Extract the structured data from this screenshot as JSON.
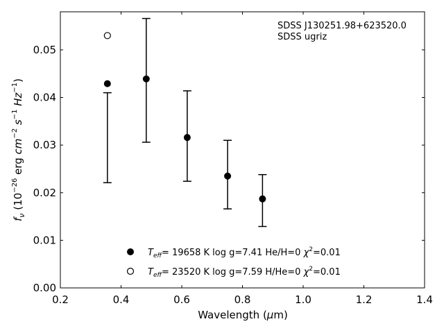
{
  "chart_data": {
    "type": "scatter",
    "title": "",
    "xlabel": "Wavelength (μm)",
    "ylabel": "fν (10⁻²⁶ erg cm⁻² s⁻¹ Hz⁻¹)",
    "xlim": [
      0.2,
      1.4
    ],
    "ylim": [
      0.0,
      0.058
    ],
    "xticks": [
      "0.2",
      "0.4",
      "0.6",
      "0.8",
      "1.0",
      "1.2",
      "1.4"
    ],
    "yticks": [
      "0.00",
      "0.01",
      "0.02",
      "0.03",
      "0.04",
      "0.05"
    ],
    "grid": false,
    "annotation": {
      "line1": "SDSS J130251.98+623520.0",
      "line2": "SDSS ugriz"
    },
    "observed": {
      "x": [
        0.355,
        0.483,
        0.618,
        0.751,
        0.866
      ],
      "y_low": [
        0.0221,
        0.0306,
        0.0224,
        0.0166,
        0.0129
      ],
      "y_high": [
        0.041,
        0.0566,
        0.0414,
        0.031,
        0.0238
      ]
    },
    "series": [
      {
        "style": "filled-circle",
        "x": [
          0.355,
          0.483,
          0.618,
          0.751,
          0.866
        ],
        "y": [
          0.0429,
          0.0439,
          0.0316,
          0.0235,
          0.0187
        ],
        "legend": {
          "teff": "= 19658 K  log g=7.41  He/H=0  ",
          "chi": "=0.01"
        }
      },
      {
        "style": "open-circle",
        "x": [
          0.355
        ],
        "y": [
          0.053
        ],
        "legend": {
          "teff": "= 23520 K  log g=7.59  H/He=0  ",
          "chi": "=0.01"
        }
      }
    ]
  }
}
